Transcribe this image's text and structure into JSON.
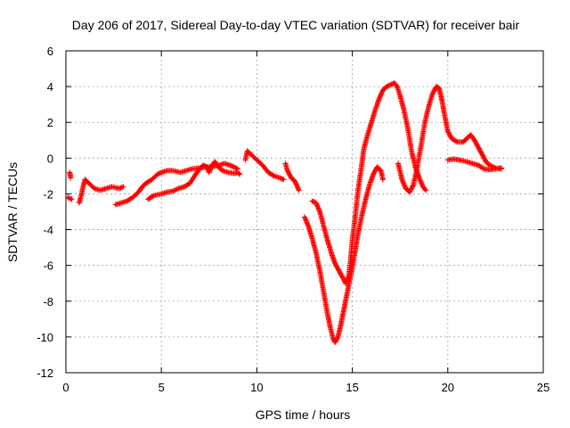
{
  "chart_data": {
    "type": "scatter",
    "title": "Day 206 of 2017, Sidereal Day-to-day VTEC variation (SDTVAR) for receiver bair",
    "xlabel": "GPS time / hours",
    "ylabel": "SDTVAR / TECUs",
    "xlim": [
      0,
      25
    ],
    "ylim": [
      -12,
      6
    ],
    "xticks": [
      0,
      5,
      10,
      15,
      20,
      25
    ],
    "yticks": [
      -12,
      -10,
      -8,
      -6,
      -4,
      -2,
      0,
      2,
      4,
      6
    ],
    "grid": true,
    "marker": "plus",
    "color": "#ff0000",
    "series": [
      {
        "segments": [
          [
            [
              0.1,
              -2.2
            ],
            [
              0.3,
              -2.3
            ]
          ],
          [
            [
              0.2,
              -0.8
            ],
            [
              0.25,
              -1.1
            ]
          ],
          [
            [
              0.7,
              -2.5
            ],
            [
              0.8,
              -2.1
            ],
            [
              0.9,
              -1.6
            ],
            [
              1.0,
              -1.2
            ],
            [
              1.2,
              -1.4
            ],
            [
              1.5,
              -1.7
            ],
            [
              1.8,
              -1.8
            ],
            [
              2.1,
              -1.7
            ],
            [
              2.4,
              -1.6
            ],
            [
              2.8,
              -1.7
            ],
            [
              3.0,
              -1.6
            ]
          ],
          [
            [
              2.6,
              -2.6
            ],
            [
              2.9,
              -2.5
            ],
            [
              3.2,
              -2.4
            ],
            [
              3.5,
              -2.2
            ],
            [
              3.8,
              -1.9
            ],
            [
              4.0,
              -1.6
            ],
            [
              4.2,
              -1.4
            ],
            [
              4.5,
              -1.2
            ],
            [
              4.8,
              -0.9
            ],
            [
              5.0,
              -0.8
            ],
            [
              5.3,
              -0.7
            ],
            [
              5.6,
              -0.7
            ],
            [
              6.0,
              -0.8
            ],
            [
              6.3,
              -0.7
            ],
            [
              6.6,
              -0.6
            ],
            [
              7.0,
              -0.55
            ],
            [
              7.3,
              -0.5
            ],
            [
              7.6,
              -0.5
            ],
            [
              8.0,
              -0.4
            ],
            [
              8.3,
              -0.3
            ],
            [
              8.6,
              -0.4
            ],
            [
              9.0,
              -0.6
            ]
          ],
          [
            [
              4.3,
              -2.3
            ],
            [
              4.6,
              -2.1
            ],
            [
              5.0,
              -2.0
            ],
            [
              5.3,
              -1.9
            ],
            [
              5.6,
              -1.85
            ],
            [
              5.9,
              -1.7
            ],
            [
              6.2,
              -1.6
            ],
            [
              6.5,
              -1.4
            ],
            [
              6.8,
              -0.9
            ],
            [
              7.0,
              -0.6
            ],
            [
              7.2,
              -0.4
            ],
            [
              7.4,
              -0.5
            ],
            [
              7.5,
              -0.8
            ],
            [
              7.6,
              -0.5
            ],
            [
              7.8,
              -0.2
            ],
            [
              8.0,
              -0.5
            ],
            [
              8.2,
              -0.7
            ],
            [
              8.5,
              -0.8
            ],
            [
              8.8,
              -0.85
            ],
            [
              9.0,
              -0.8
            ],
            [
              9.1,
              -0.9
            ]
          ],
          [
            [
              9.4,
              -0.1
            ],
            [
              9.5,
              0.4
            ],
            [
              9.7,
              0.2
            ],
            [
              10.0,
              -0.1
            ],
            [
              10.3,
              -0.4
            ],
            [
              10.6,
              -0.8
            ],
            [
              10.9,
              -1.0
            ],
            [
              11.2,
              -1.1
            ],
            [
              11.4,
              -1.2
            ]
          ],
          [
            [
              11.5,
              -0.3
            ],
            [
              11.6,
              -0.7
            ],
            [
              11.8,
              -1.1
            ],
            [
              12.0,
              -1.3
            ],
            [
              12.2,
              -1.8
            ]
          ],
          [
            [
              12.5,
              -3.3
            ],
            [
              12.7,
              -3.8
            ],
            [
              12.9,
              -4.5
            ],
            [
              13.1,
              -5.3
            ],
            [
              13.3,
              -6.3
            ],
            [
              13.5,
              -7.5
            ],
            [
              13.7,
              -8.7
            ],
            [
              13.85,
              -9.5
            ],
            [
              14.0,
              -10.1
            ],
            [
              14.1,
              -10.3
            ],
            [
              14.25,
              -10.0
            ],
            [
              14.4,
              -9.3
            ],
            [
              14.55,
              -8.5
            ],
            [
              14.7,
              -7.7
            ],
            [
              14.85,
              -6.9
            ],
            [
              15.0,
              -6.1
            ],
            [
              15.15,
              -5.2
            ],
            [
              15.3,
              -4.2
            ],
            [
              15.5,
              -3.2
            ],
            [
              15.7,
              -2.3
            ],
            [
              15.9,
              -1.5
            ],
            [
              16.1,
              -0.9
            ],
            [
              16.3,
              -0.5
            ],
            [
              16.5,
              -0.7
            ],
            [
              16.6,
              -1.2
            ]
          ],
          [
            [
              12.9,
              -2.4
            ],
            [
              13.1,
              -2.5
            ],
            [
              13.3,
              -3.0
            ],
            [
              13.5,
              -3.8
            ],
            [
              13.7,
              -4.6
            ],
            [
              13.9,
              -5.3
            ],
            [
              14.1,
              -5.9
            ],
            [
              14.3,
              -6.3
            ],
            [
              14.5,
              -6.7
            ],
            [
              14.65,
              -7.0
            ],
            [
              14.8,
              -6.6
            ],
            [
              14.9,
              -5.8
            ],
            [
              15.0,
              -4.6
            ],
            [
              15.15,
              -3.3
            ],
            [
              15.3,
              -1.8
            ],
            [
              15.45,
              -0.7
            ],
            [
              15.6,
              0.5
            ],
            [
              15.8,
              1.3
            ],
            [
              16.0,
              2.0
            ],
            [
              16.2,
              2.7
            ],
            [
              16.4,
              3.3
            ],
            [
              16.6,
              3.8
            ],
            [
              16.8,
              4.0
            ],
            [
              17.0,
              4.1
            ],
            [
              17.2,
              4.2
            ],
            [
              17.35,
              4.0
            ],
            [
              17.5,
              3.5
            ],
            [
              17.7,
              2.7
            ],
            [
              17.9,
              1.7
            ],
            [
              18.1,
              0.4
            ],
            [
              18.3,
              -0.5
            ],
            [
              18.5,
              -1.1
            ],
            [
              18.7,
              -1.6
            ],
            [
              18.85,
              -1.8
            ]
          ],
          [
            [
              17.4,
              -0.3
            ],
            [
              17.6,
              -1.2
            ],
            [
              17.8,
              -1.7
            ],
            [
              18.0,
              -1.9
            ],
            [
              18.2,
              -1.5
            ],
            [
              18.4,
              -0.5
            ],
            [
              18.6,
              0.7
            ],
            [
              18.8,
              2.0
            ],
            [
              19.0,
              2.9
            ],
            [
              19.2,
              3.6
            ],
            [
              19.4,
              4.0
            ],
            [
              19.55,
              3.9
            ],
            [
              19.7,
              3.2
            ],
            [
              19.85,
              2.3
            ],
            [
              20.0,
              1.5
            ],
            [
              20.2,
              1.1
            ],
            [
              20.5,
              0.9
            ],
            [
              20.8,
              0.9
            ],
            [
              21.0,
              1.1
            ],
            [
              21.2,
              1.3
            ],
            [
              21.4,
              1.0
            ],
            [
              21.6,
              0.6
            ],
            [
              21.8,
              0.2
            ],
            [
              22.0,
              -0.2
            ],
            [
              22.2,
              -0.4
            ],
            [
              22.5,
              -0.55
            ],
            [
              22.8,
              -0.6
            ]
          ],
          [
            [
              20.0,
              -0.1
            ],
            [
              20.3,
              -0.05
            ],
            [
              20.6,
              -0.1
            ],
            [
              21.0,
              -0.2
            ],
            [
              21.3,
              -0.3
            ],
            [
              21.6,
              -0.4
            ],
            [
              21.9,
              -0.6
            ],
            [
              22.2,
              -0.65
            ],
            [
              22.5,
              -0.6
            ],
            [
              22.8,
              -0.55
            ]
          ]
        ]
      }
    ]
  }
}
